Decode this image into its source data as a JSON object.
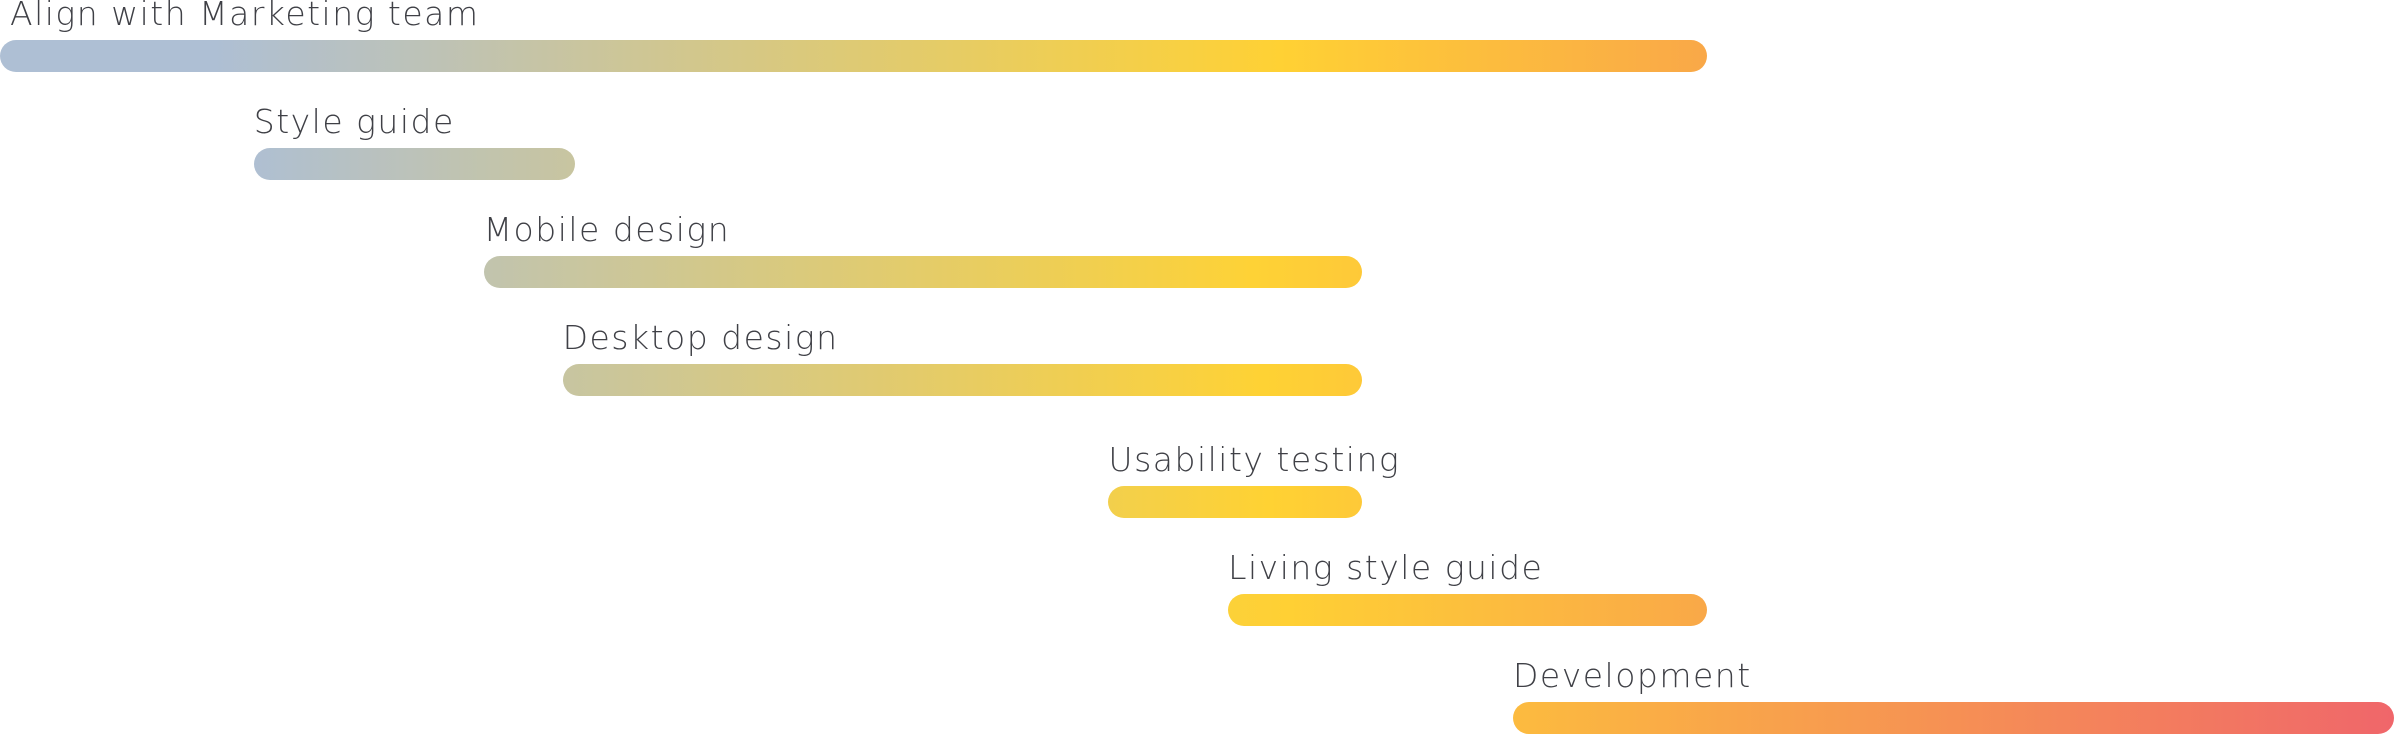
{
  "chart_data": {
    "type": "gantt",
    "gradient_colors": {
      "start": "#AEBFD4",
      "mid": "#FFD233",
      "end": "#F0666A"
    },
    "tasks": [
      {
        "label": "Align with Marketing team",
        "start": 0.0,
        "end": 0.713
      },
      {
        "label": "Style guide",
        "start": 0.106,
        "end": 0.24
      },
      {
        "label": "Mobile design",
        "start": 0.202,
        "end": 0.569
      },
      {
        "label": "Desktop design",
        "start": 0.235,
        "end": 0.569
      },
      {
        "label": "Usability testing",
        "start": 0.463,
        "end": 0.569
      },
      {
        "label": "Living style guide",
        "start": 0.513,
        "end": 0.713
      },
      {
        "label": "Development",
        "start": 0.632,
        "end": 1.0
      }
    ]
  }
}
